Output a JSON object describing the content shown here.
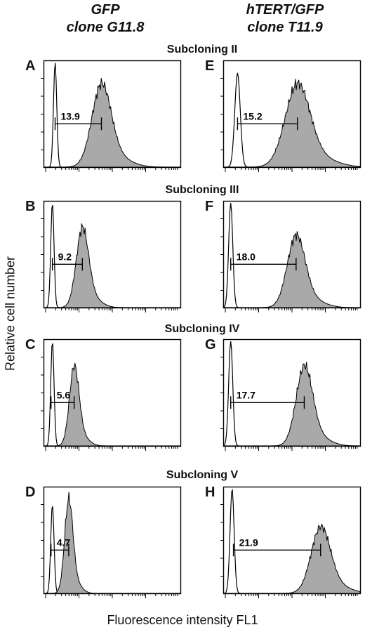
{
  "columns": [
    {
      "line1": "GFP",
      "line2": "clone G11.8"
    },
    {
      "line1": "hTERT/GFP",
      "line2": "clone T11.9"
    }
  ],
  "subclonings": [
    "Subcloning II",
    "Subcloning III",
    "Subcloning IV",
    "Subcloning V"
  ],
  "y_axis_label": "Relative cell number",
  "x_axis_label": "Fluorescence intensity FL1",
  "colors": {
    "fill": "#a9a9a9",
    "line": "#000000"
  },
  "chart_data": [
    {
      "type": "area",
      "panel": "A",
      "column": 0,
      "row": 0,
      "value_label": "13.9",
      "series": [
        {
          "name": "",
          "peak": 0.08,
          "width": 0.012,
          "height": 1.0
        },
        {
          "name": "",
          "peak": 0.42,
          "width": 0.07,
          "height": 0.75,
          "filled": true
        }
      ],
      "marker": [
        0.08,
        0.42
      ]
    },
    {
      "type": "area",
      "panel": "B",
      "column": 0,
      "row": 1,
      "value_label": "9.2",
      "series": [
        {
          "name": "",
          "peak": 0.06,
          "width": 0.012,
          "height": 1.0
        },
        {
          "name": "",
          "peak": 0.28,
          "width": 0.045,
          "height": 0.72,
          "filled": true
        }
      ],
      "marker": [
        0.06,
        0.28
      ]
    },
    {
      "type": "area",
      "panel": "C",
      "column": 0,
      "row": 2,
      "value_label": "5.6",
      "series": [
        {
          "name": "",
          "peak": 0.06,
          "width": 0.012,
          "height": 1.0
        },
        {
          "name": "",
          "peak": 0.22,
          "width": 0.035,
          "height": 0.72,
          "filled": true
        }
      ],
      "marker": [
        0.05,
        0.22
      ]
    },
    {
      "type": "area",
      "panel": "D",
      "column": 0,
      "row": 3,
      "value_label": "4.7",
      "series": [
        {
          "name": "",
          "peak": 0.06,
          "width": 0.012,
          "height": 0.85
        },
        {
          "name": "",
          "peak": 0.18,
          "width": 0.03,
          "height": 0.85,
          "filled": true
        }
      ],
      "marker": [
        0.05,
        0.18
      ]
    },
    {
      "type": "area",
      "panel": "E",
      "column": 1,
      "row": 0,
      "value_label": "15.2",
      "series": [
        {
          "name": "",
          "peak": 0.1,
          "width": 0.02,
          "height": 0.9
        },
        {
          "name": "",
          "peak": 0.54,
          "width": 0.09,
          "height": 0.75,
          "filled": true
        }
      ],
      "marker": [
        0.1,
        0.54
      ]
    },
    {
      "type": "area",
      "panel": "F",
      "column": 1,
      "row": 1,
      "value_label": "18.0",
      "series": [
        {
          "name": "",
          "peak": 0.05,
          "width": 0.015,
          "height": 1.0
        },
        {
          "name": "",
          "peak": 0.53,
          "width": 0.065,
          "height": 0.65,
          "filled": true
        }
      ],
      "marker": [
        0.05,
        0.53
      ]
    },
    {
      "type": "area",
      "panel": "G",
      "column": 1,
      "row": 2,
      "value_label": "17.7",
      "series": [
        {
          "name": "",
          "peak": 0.05,
          "width": 0.015,
          "height": 1.0
        },
        {
          "name": "",
          "peak": 0.59,
          "width": 0.06,
          "height": 0.72,
          "filled": true
        }
      ],
      "marker": [
        0.05,
        0.59
      ]
    },
    {
      "type": "area",
      "panel": "H",
      "column": 1,
      "row": 3,
      "value_label": "21.9",
      "series": [
        {
          "name": "",
          "peak": 0.06,
          "width": 0.015,
          "height": 1.0
        },
        {
          "name": "",
          "peak": 0.71,
          "width": 0.07,
          "height": 0.6,
          "filled": true
        }
      ],
      "marker": [
        0.07,
        0.71
      ]
    }
  ]
}
